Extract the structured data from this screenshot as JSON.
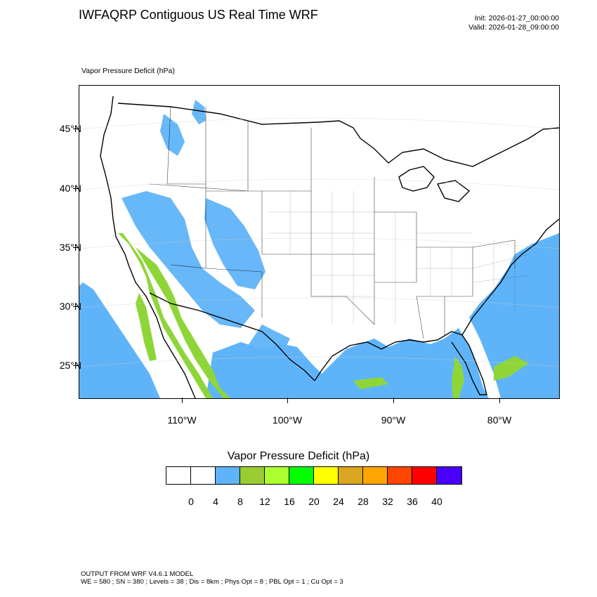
{
  "header": {
    "title": "IWFAQRP Contiguous US Real Time WRF",
    "init": "Init: 2026-01-27_00:00:00",
    "valid": "Valid: 2026-01-28_09:00:00"
  },
  "field": {
    "label": "Vapor Pressure Deficit   (hPa)"
  },
  "map": {
    "lat_ticks": [
      "45°N",
      "40°N",
      "35°N",
      "30°N",
      "25°N"
    ],
    "lon_ticks": [
      "110°W",
      "100°W",
      "90°W",
      "80°W"
    ],
    "colors": {
      "ocean": "#5fb4f9",
      "low_vpd": "#8ed638",
      "lines": "#000000",
      "land": "#ffffff"
    }
  },
  "colorbar": {
    "title": "Vapor Pressure Deficit  (hPa)",
    "levels": [
      "0",
      "4",
      "8",
      "12",
      "16",
      "20",
      "24",
      "28",
      "32",
      "36",
      "40"
    ],
    "colors": [
      "#ffffff",
      "#ffffff",
      "#5fb4f9",
      "#9acd32",
      "#adff2f",
      "#00ff00",
      "#ffff00",
      "#daa520",
      "#ffa500",
      "#ff4500",
      "#ff0000",
      "#4b00ff"
    ]
  },
  "footer": {
    "line1": "OUTPUT FROM WRF V4.6.1 MODEL",
    "line2": "WE = 580 ; SN = 380 ; Levels = 38 ; Dis = 8km ; Phys Opt = 8 ; PBL Opt = 1 ; Cu Opt = 3"
  }
}
